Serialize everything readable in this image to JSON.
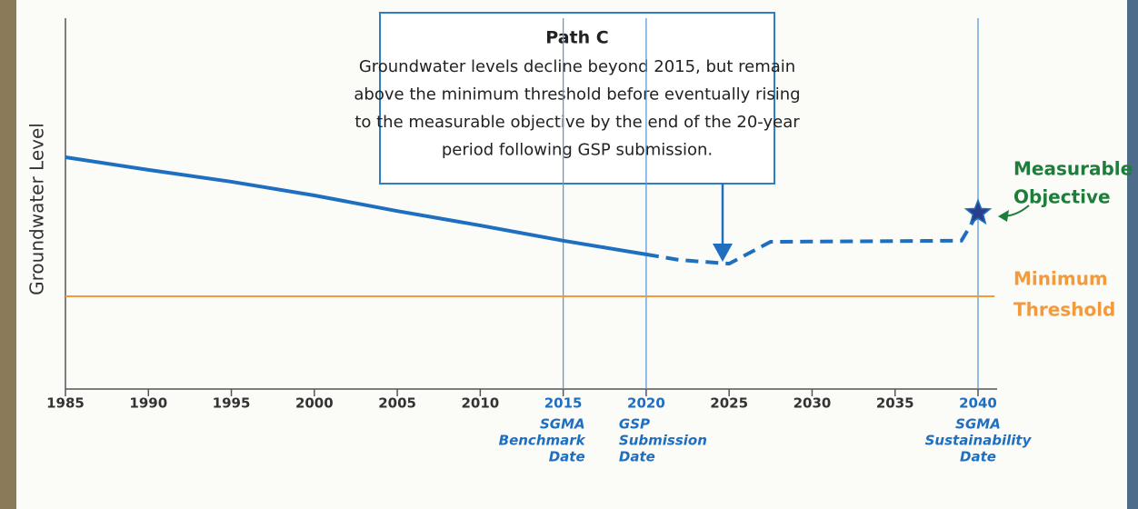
{
  "chart_data": {
    "type": "line",
    "y_label": "Groundwater Level",
    "xlim": [
      1985,
      2041
    ],
    "ylim": [
      0,
      100
    ],
    "xticks": [
      1985,
      1990,
      1995,
      2000,
      2005,
      2010,
      2015,
      2020,
      2025,
      2030,
      2035,
      2040
    ],
    "series": [
      {
        "color": "#1f6fc0",
        "style": "solid",
        "x": [
          1985,
          1990,
          1995,
          2000,
          2005,
          2010,
          2015,
          2020
        ],
        "values": [
          62.5,
          59.1,
          55.9,
          52.2,
          48.0,
          44.1,
          40.0,
          36.3
        ]
      },
      {
        "color": "#1f6fc0",
        "style": "dashed",
        "x": [
          2020,
          2022,
          2025,
          2027.5,
          2039,
          2040
        ],
        "values": [
          36.3,
          34.8,
          33.8,
          39.7,
          40.0,
          47.5
        ]
      }
    ],
    "reference_lines": [
      {
        "x": 2015,
        "label_lines": [
          "SGMA",
          "Benchmark",
          "Date"
        ],
        "align": "end"
      },
      {
        "x": 2020,
        "label_lines": [
          "GSP",
          "Submission",
          "Date"
        ],
        "align": "start"
      },
      {
        "x": 2040,
        "label_lines": [
          "SGMA",
          "Sustainability",
          "Date"
        ],
        "align": "middle"
      }
    ],
    "threshold": {
      "value": 25,
      "label_lines": [
        "Minimum",
        "Threshold"
      ],
      "color": "#f39a3c"
    },
    "objective": {
      "x": 2040,
      "value": 47.5,
      "label_lines": [
        "Measurable",
        "Objective"
      ],
      "color": "#1e7d3a"
    },
    "annotation": {
      "title": "Path C",
      "lines": [
        "Groundwater levels decline beyond 2015, but remain",
        "above the minimum threshold before eventually rising",
        "to the measurable objective by the end of the 20-year",
        "period following GSP submission."
      ]
    }
  }
}
